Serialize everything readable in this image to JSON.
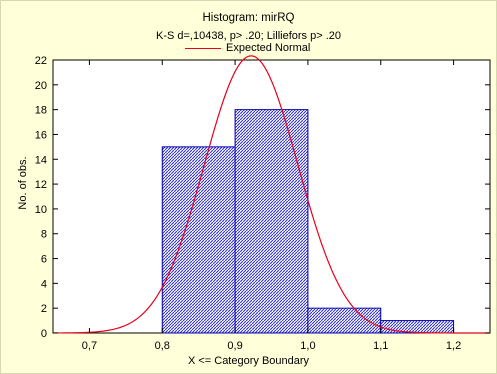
{
  "chart_data": {
    "type": "bar",
    "title": "Histogram: mirRQ",
    "subtitle": "K-S d=,10438, p> .20; Lilliefors p> .20",
    "xlabel": "X <= Category Boundary",
    "ylabel": "No. of obs.",
    "xlim": [
      0.65,
      1.25
    ],
    "ylim": [
      0,
      22
    ],
    "x_ticks": [
      "0,7",
      "0,8",
      "0,9",
      "1,0",
      "1,1",
      "1,2"
    ],
    "x_tick_values": [
      0.7,
      0.8,
      0.9,
      1.0,
      1.1,
      1.2
    ],
    "y_ticks": [
      "0",
      "2",
      "4",
      "6",
      "8",
      "10",
      "12",
      "14",
      "16",
      "18",
      "20",
      "22"
    ],
    "y_tick_values": [
      0,
      2,
      4,
      6,
      8,
      10,
      12,
      14,
      16,
      18,
      20,
      22
    ],
    "bins": [
      {
        "from": 0.7,
        "to": 0.8,
        "value": 0
      },
      {
        "from": 0.8,
        "to": 0.9,
        "value": 15
      },
      {
        "from": 0.9,
        "to": 1.0,
        "value": 18
      },
      {
        "from": 1.0,
        "to": 1.1,
        "value": 2
      },
      {
        "from": 1.1,
        "to": 1.2,
        "value": 1
      }
    ],
    "series": [
      {
        "name": "Expected Normal",
        "type": "line",
        "mean": 0.922,
        "sd": 0.0643,
        "n": 36,
        "bin_width": 0.1
      }
    ],
    "legend_position": "top-center",
    "grid": false,
    "colors": {
      "bar_fill": "#3333cc",
      "bar_edge": "#0000b0",
      "curve": "#e8001c",
      "background": "#ffffd9",
      "plot_background": "#ffffff"
    }
  }
}
